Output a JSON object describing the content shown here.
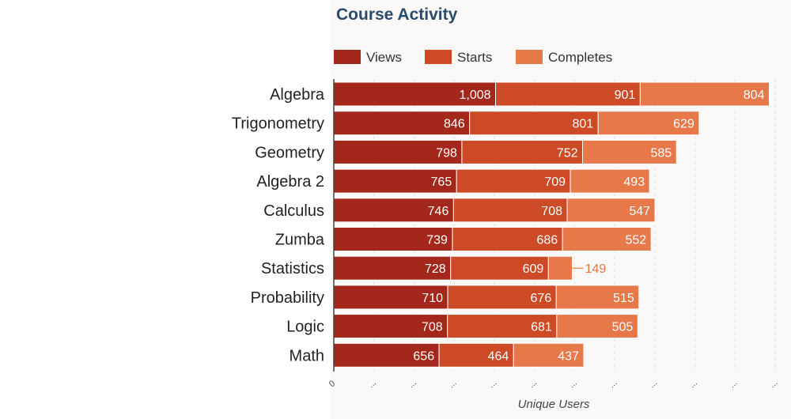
{
  "chart_data": {
    "type": "bar",
    "orientation": "horizontal",
    "stacked": true,
    "title": "Course Activity",
    "xlabel": "Unique Users",
    "ylabel": "",
    "categories": [
      "Algebra",
      "Trigonometry",
      "Geometry",
      "Algebra 2",
      "Calculus",
      "Zumba",
      "Statistics",
      "Probability",
      "Logic",
      "Math"
    ],
    "series": [
      {
        "name": "Views",
        "color": "#a3271a",
        "values": [
          1008,
          846,
          798,
          765,
          746,
          739,
          728,
          710,
          708,
          656
        ],
        "labels": [
          "1,008",
          "846",
          "798",
          "765",
          "746",
          "739",
          "728",
          "710",
          "708",
          "656"
        ]
      },
      {
        "name": "Starts",
        "color": "#cc4a26",
        "values": [
          901,
          801,
          752,
          709,
          708,
          686,
          609,
          676,
          681,
          464
        ],
        "labels": [
          "901",
          "801",
          "752",
          "709",
          "708",
          "686",
          "609",
          "676",
          "681",
          "464"
        ]
      },
      {
        "name": "Completes",
        "color": "#e6784a",
        "values": [
          804,
          629,
          585,
          493,
          547,
          552,
          149,
          515,
          505,
          437
        ],
        "labels": [
          "804",
          "629",
          "585",
          "493",
          "547",
          "552",
          "149",
          "515",
          "505",
          "437"
        ]
      }
    ],
    "xlim": [
      0,
      2750
    ],
    "x_ticks": [
      0,
      250,
      500,
      750,
      1000,
      1250,
      1500,
      1750,
      2000,
      2250,
      2500,
      2750
    ],
    "x_tick_labels": [
      "0",
      "...",
      "...",
      "...",
      "...",
      "...",
      "...",
      "...",
      "...",
      "...",
      "...",
      "..."
    ],
    "legend_position": "top-left",
    "grid": true
  }
}
